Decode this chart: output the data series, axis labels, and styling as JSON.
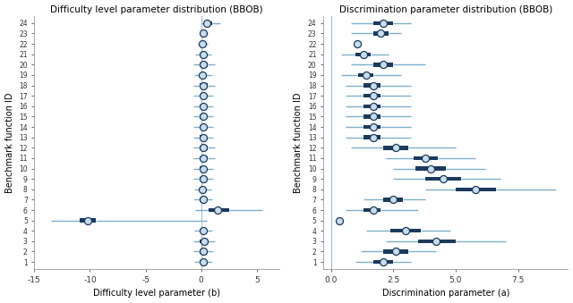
{
  "title_left": "Difficulty level parameter distribution (BBOB)",
  "title_right": "Discrimination parameter distribution (BBOB)",
  "xlabel_left": "Difficulty level parameter (b)",
  "xlabel_right": "Discrimination parameter (a)",
  "ylabel": "Benchmark function ID",
  "func_ids": [
    1,
    2,
    3,
    4,
    5,
    6,
    7,
    8,
    9,
    10,
    11,
    12,
    13,
    14,
    15,
    16,
    17,
    18,
    19,
    20,
    21,
    22,
    23,
    24
  ],
  "xlim_left": [
    -15,
    7
  ],
  "xlim_right": [
    -0.3,
    9.5
  ],
  "xticks_left": [
    -15,
    -10,
    -5,
    0,
    5
  ],
  "xticks_right": [
    0.0,
    2.5,
    5.0,
    7.5
  ],
  "dark_color": "#1b3a5e",
  "light_color": "#7eb0cc",
  "circle_face": "#c8dded",
  "vline_color": "#9fbfd0",
  "left_data": {
    "medians": [
      0.15,
      0.2,
      0.25,
      0.2,
      -10.2,
      1.5,
      0.15,
      0.1,
      0.15,
      0.15,
      0.2,
      0.2,
      0.15,
      0.15,
      0.15,
      0.15,
      0.15,
      0.2,
      0.1,
      0.2,
      0.15,
      0.1,
      0.2,
      0.5
    ],
    "q1": [
      -0.1,
      -0.1,
      -0.1,
      -0.1,
      -10.9,
      0.7,
      -0.1,
      -0.1,
      -0.1,
      -0.1,
      -0.1,
      -0.1,
      -0.1,
      -0.1,
      -0.1,
      -0.1,
      -0.1,
      -0.1,
      -0.1,
      -0.1,
      -0.1,
      -0.1,
      0.0,
      0.3
    ],
    "q3": [
      0.4,
      0.5,
      0.6,
      0.5,
      -9.5,
      2.5,
      0.4,
      0.35,
      0.45,
      0.45,
      0.55,
      0.55,
      0.45,
      0.45,
      0.45,
      0.45,
      0.45,
      0.55,
      0.4,
      0.55,
      0.45,
      0.3,
      0.45,
      1.0
    ],
    "whisker_lo": [
      -0.6,
      -0.7,
      -0.7,
      -0.6,
      -13.5,
      -0.5,
      -0.7,
      -0.6,
      -0.7,
      -0.7,
      -0.7,
      -0.7,
      -0.7,
      -0.7,
      -0.7,
      -0.7,
      -0.7,
      -0.7,
      -0.6,
      -0.7,
      -0.5,
      -0.3,
      -0.1,
      0.0
    ],
    "whisker_hi": [
      1.0,
      1.1,
      1.2,
      1.0,
      0.5,
      5.5,
      1.0,
      0.9,
      1.1,
      1.1,
      1.2,
      1.2,
      1.1,
      1.1,
      1.1,
      1.1,
      1.1,
      1.2,
      1.0,
      1.2,
      0.9,
      0.6,
      0.6,
      1.7
    ]
  },
  "right_data": {
    "medians": [
      2.1,
      2.6,
      4.2,
      3.0,
      0.35,
      1.7,
      2.5,
      5.8,
      4.5,
      4.0,
      3.8,
      2.6,
      1.7,
      1.7,
      1.7,
      1.7,
      1.7,
      1.7,
      1.4,
      2.1,
      1.3,
      1.05,
      2.0,
      2.1
    ],
    "q1": [
      1.7,
      2.1,
      3.5,
      2.4,
      0.35,
      1.3,
      2.1,
      5.0,
      3.8,
      3.4,
      3.3,
      2.1,
      1.3,
      1.3,
      1.3,
      1.3,
      1.3,
      1.3,
      1.1,
      1.7,
      1.0,
      1.05,
      1.7,
      1.7
    ],
    "q3": [
      2.5,
      3.1,
      5.0,
      3.6,
      0.35,
      2.0,
      2.9,
      6.6,
      5.2,
      4.6,
      4.3,
      3.1,
      2.0,
      2.0,
      2.0,
      2.0,
      2.0,
      2.0,
      1.7,
      2.5,
      1.6,
      1.05,
      2.3,
      2.5
    ],
    "whisker_lo": [
      1.0,
      1.2,
      2.2,
      1.4,
      0.35,
      0.6,
      1.3,
      3.8,
      2.5,
      2.5,
      2.2,
      0.8,
      0.6,
      0.6,
      0.6,
      0.6,
      0.6,
      0.6,
      0.4,
      0.8,
      0.4,
      1.05,
      0.8,
      0.8
    ],
    "whisker_hi": [
      3.2,
      4.2,
      7.0,
      4.8,
      0.35,
      3.5,
      3.8,
      9.0,
      6.8,
      6.2,
      5.8,
      5.0,
      3.2,
      3.2,
      3.2,
      3.2,
      3.2,
      3.2,
      2.8,
      3.8,
      2.3,
      1.05,
      2.8,
      3.2
    ]
  }
}
